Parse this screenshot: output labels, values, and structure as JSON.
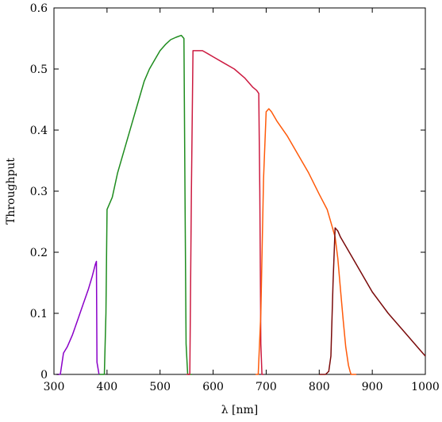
{
  "chart_data": {
    "type": "line",
    "xlabel": "λ [nm]",
    "ylabel": "Throughput",
    "xlim": [
      300,
      1000
    ],
    "ylim": [
      0,
      0.6
    ],
    "x_ticks": [
      300,
      400,
      500,
      600,
      700,
      800,
      900,
      1000
    ],
    "y_ticks": [
      0,
      0.1,
      0.2,
      0.3,
      0.4,
      0.5,
      0.6
    ],
    "y_tick_labels": [
      "0",
      "0.1",
      "0.2",
      "0.3",
      "0.4",
      "0.5",
      "0.6"
    ],
    "grid": false,
    "legend": "none",
    "series": [
      {
        "color": "#8a00c8",
        "x": [
          305,
          312,
          318,
          325,
          335,
          345,
          355,
          365,
          372,
          378,
          380,
          381,
          385
        ],
        "y": [
          0.0,
          0.0,
          0.035,
          0.045,
          0.065,
          0.09,
          0.115,
          0.14,
          0.16,
          0.18,
          0.185,
          0.02,
          0.0
        ]
      },
      {
        "color": "#1e8c1e",
        "x": [
          385,
          395,
          398,
          400,
          410,
          420,
          430,
          440,
          450,
          460,
          470,
          480,
          490,
          500,
          510,
          520,
          530,
          540,
          545,
          547,
          549,
          552,
          560
        ],
        "y": [
          0.0,
          0.0,
          0.1,
          0.27,
          0.29,
          0.33,
          0.36,
          0.39,
          0.42,
          0.45,
          0.48,
          0.5,
          0.515,
          0.53,
          0.54,
          0.548,
          0.552,
          0.555,
          0.55,
          0.3,
          0.05,
          0.0,
          0.0
        ]
      },
      {
        "color": "#cc1a40",
        "x": [
          550,
          556,
          559,
          562,
          570,
          580,
          590,
          600,
          620,
          640,
          660,
          675,
          682,
          686,
          688,
          690,
          692,
          695
        ],
        "y": [
          0.0,
          0.0,
          0.3,
          0.53,
          0.53,
          0.53,
          0.525,
          0.52,
          0.51,
          0.5,
          0.485,
          0.47,
          0.465,
          0.46,
          0.3,
          0.05,
          0.0,
          0.0
        ]
      },
      {
        "color": "#ff5a0a",
        "x": [
          680,
          685,
          690,
          695,
          700,
          705,
          710,
          720,
          740,
          760,
          780,
          800,
          815,
          825,
          830,
          835,
          840,
          845,
          850,
          855,
          858,
          860,
          870
        ],
        "y": [
          0.0,
          0.0,
          0.1,
          0.32,
          0.43,
          0.435,
          0.43,
          0.415,
          0.39,
          0.36,
          0.33,
          0.295,
          0.27,
          0.24,
          0.225,
          0.19,
          0.14,
          0.09,
          0.045,
          0.015,
          0.005,
          0.0,
          0.0
        ]
      },
      {
        "color": "#7a0a0a",
        "x": [
          800,
          812,
          818,
          822,
          826,
          830,
          835,
          840,
          850,
          870,
          900,
          930,
          960,
          990,
          1000
        ],
        "y": [
          0.0,
          0.0,
          0.005,
          0.03,
          0.15,
          0.24,
          0.235,
          0.225,
          0.21,
          0.18,
          0.135,
          0.1,
          0.07,
          0.04,
          0.03
        ]
      }
    ]
  }
}
